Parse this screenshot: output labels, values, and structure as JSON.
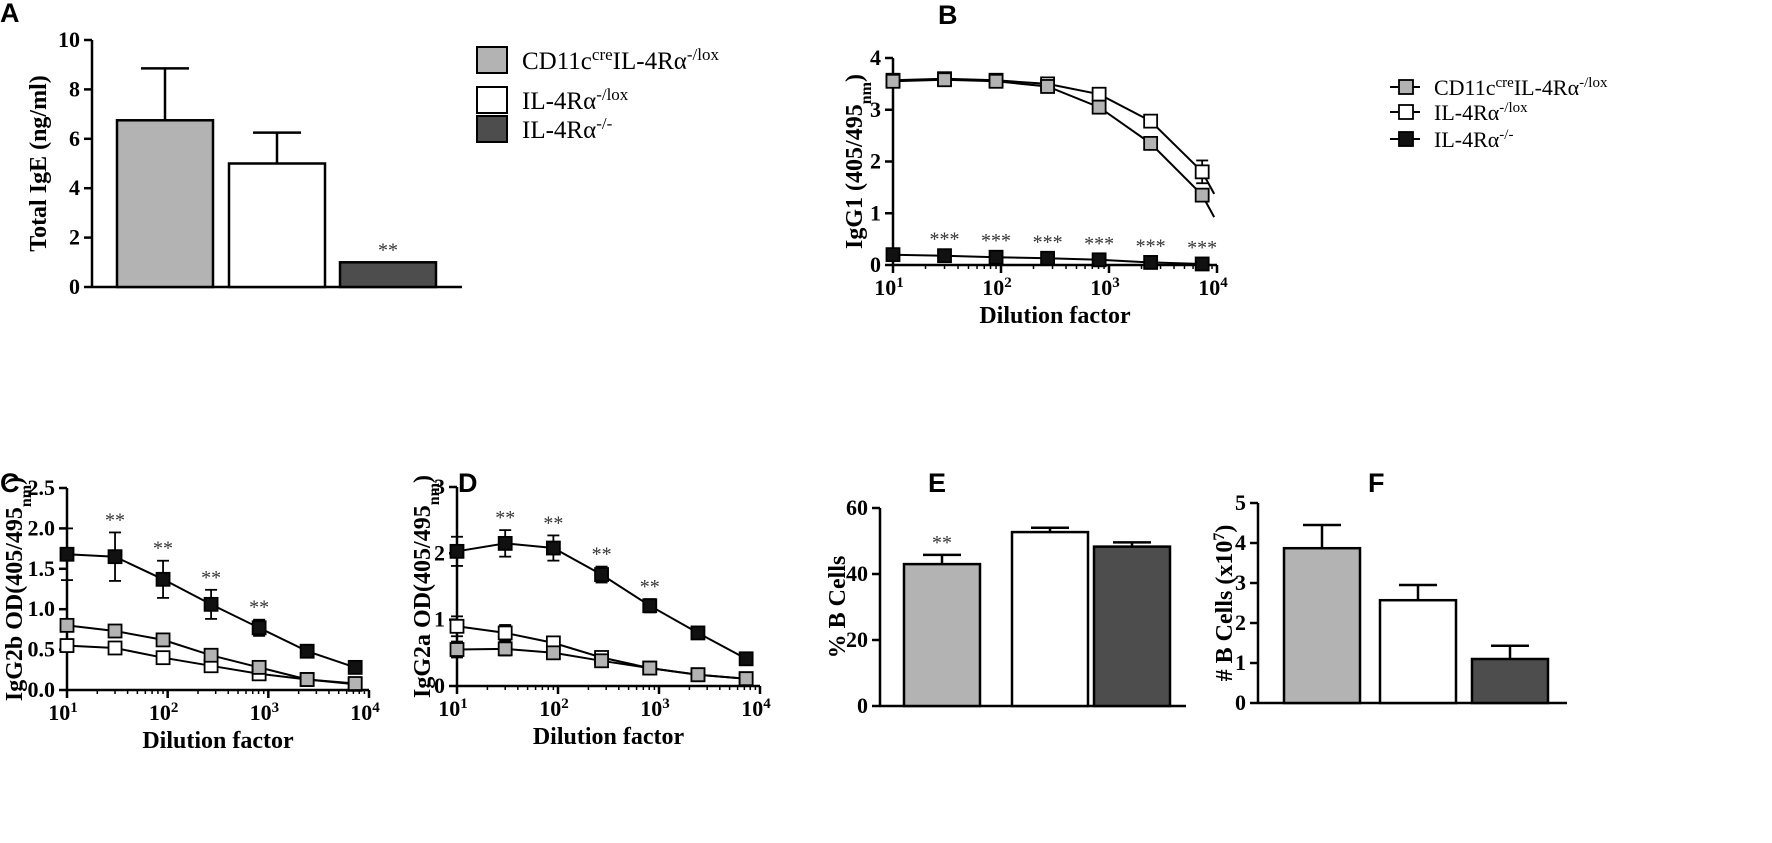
{
  "legend": {
    "entries": [
      {
        "base": "CD11c",
        "sup1": "cre",
        "mid": "IL-4Rα",
        "sup2": "-/lox"
      },
      {
        "base": "IL-4Rα",
        "sup1": "",
        "mid": "",
        "sup2": "-/lox"
      },
      {
        "base": "IL-4Rα",
        "sup1": "",
        "mid": "",
        "sup2": "-/-"
      }
    ]
  },
  "colors": {
    "grey": "#b3b3b3",
    "white": "#ffffff",
    "dark": "#4d4d4d",
    "black": "#111111"
  },
  "chart_data": [
    {
      "panel": "A",
      "type": "bar",
      "ylabel": "Total IgE (ng/ml)",
      "ylim": [
        0,
        10
      ],
      "yticks": [
        "0",
        "2",
        "4",
        "6",
        "8",
        "10"
      ],
      "categories": [
        "CD11c cre IL-4Rα -/lox",
        "IL-4Rα -/lox",
        "IL-4Rα -/-"
      ],
      "values": [
        6.75,
        5.0,
        1.0
      ],
      "errors": [
        2.1,
        1.25,
        0
      ],
      "annotations": [
        "",
        "",
        "**"
      ]
    },
    {
      "panel": "B",
      "type": "line",
      "ylabel": "IgG1 (405/495",
      "ylabel_sub": "nm",
      "ylabel_end": ")",
      "xlabel": "Dilution factor",
      "xscale": "log",
      "xlim": [
        10,
        10000
      ],
      "ylim": [
        0,
        4
      ],
      "yticks": [
        "0",
        "1",
        "2",
        "3",
        "4"
      ],
      "x": [
        10,
        30,
        90,
        270,
        810,
        2430,
        7290
      ],
      "series": [
        {
          "name": "CD11c cre IL-4Rα -/lox",
          "values": [
            3.55,
            3.58,
            3.55,
            3.45,
            3.05,
            2.35,
            1.35
          ],
          "errors": [
            0,
            0,
            0,
            0,
            0,
            0.05,
            0.1
          ]
        },
        {
          "name": "IL-4Rα -/lox",
          "values": [
            3.57,
            3.6,
            3.57,
            3.5,
            3.3,
            2.78,
            1.8
          ],
          "errors": [
            0,
            0,
            0,
            0,
            0,
            0.05,
            0.22
          ]
        },
        {
          "name": "IL-4Rα -/-",
          "values": [
            0.2,
            0.18,
            0.15,
            0.13,
            0.1,
            0.05,
            0.02
          ],
          "errors": [
            0,
            0,
            0,
            0,
            0,
            0,
            0
          ]
        }
      ],
      "stars": [
        "",
        "***",
        "***",
        "***",
        "***",
        "***",
        "***"
      ]
    },
    {
      "panel": "C",
      "type": "line",
      "ylabel": "IgG2b OD(405/495",
      "ylabel_sub": "nm",
      "ylabel_end": ")",
      "xlabel": "Dilution factor",
      "xscale": "log",
      "xlim": [
        10,
        10000
      ],
      "ylim": [
        0,
        2.5
      ],
      "yticks": [
        "0.0",
        "0.5",
        "1.0",
        "1.5",
        "2.0",
        "2.5"
      ],
      "x": [
        10,
        30,
        90,
        270,
        810,
        2430,
        7290
      ],
      "series": [
        {
          "name": "CD11c cre IL-4Rα -/lox",
          "values": [
            0.8,
            0.73,
            0.62,
            0.43,
            0.28,
            0.13,
            0.08
          ],
          "errors": [
            0.05,
            0.04,
            0.03,
            0.03,
            0.02,
            0.02,
            0.01
          ]
        },
        {
          "name": "IL-4Rα -/lox",
          "values": [
            0.55,
            0.52,
            0.4,
            0.3,
            0.2,
            0.13,
            0.07
          ],
          "errors": [
            0.05,
            0.03,
            0.03,
            0.02,
            0.02,
            0.01,
            0.01
          ]
        },
        {
          "name": "IL-4Rα -/-",
          "values": [
            1.68,
            1.65,
            1.37,
            1.06,
            0.77,
            0.48,
            0.28
          ],
          "errors": [
            0.32,
            0.3,
            0.23,
            0.18,
            0.1,
            0.03,
            0.02
          ]
        }
      ],
      "stars": [
        "",
        "**",
        "**",
        "**",
        "**",
        "",
        ""
      ]
    },
    {
      "panel": "D",
      "type": "line",
      "ylabel": "IgG2a OD(405/495",
      "ylabel_sub": "nm",
      "ylabel_end": ")",
      "xlabel": "Dilution factor",
      "xscale": "log",
      "xlim": [
        10,
        10000
      ],
      "ylim": [
        0,
        3
      ],
      "yticks": [
        "0",
        "1",
        "2",
        "3"
      ],
      "x": [
        10,
        30,
        90,
        270,
        810,
        2430,
        7290
      ],
      "series": [
        {
          "name": "CD11c cre IL-4Rα -/lox",
          "values": [
            0.55,
            0.56,
            0.5,
            0.38,
            0.27,
            0.17,
            0.11
          ],
          "errors": [
            0.12,
            0.1,
            0.08,
            0.05,
            0.04,
            0.03,
            0.02
          ]
        },
        {
          "name": "IL-4Rα -/lox",
          "values": [
            0.9,
            0.8,
            0.65,
            0.43,
            0.27,
            0.17,
            0.11
          ],
          "errors": [
            0.15,
            0.12,
            0.08,
            0.06,
            0.04,
            0.02,
            0.02
          ]
        },
        {
          "name": "IL-4Rα -/-",
          "values": [
            2.03,
            2.15,
            2.08,
            1.68,
            1.21,
            0.8,
            0.41
          ],
          "errors": [
            0.22,
            0.2,
            0.19,
            0.12,
            0.1,
            0.09,
            0.03
          ]
        }
      ],
      "stars": [
        "",
        "**",
        "**",
        "**",
        "**",
        "",
        ""
      ]
    },
    {
      "panel": "E",
      "type": "bar",
      "ylabel": "% B Cells",
      "ylim": [
        0,
        60
      ],
      "yticks": [
        "0",
        "20",
        "40",
        "60"
      ],
      "categories": [
        "CD11c cre IL-4Rα -/lox",
        "IL-4Rα -/lox",
        "IL-4Rα -/-"
      ],
      "values": [
        43,
        52.7,
        48.3
      ],
      "errors": [
        2.8,
        1.3,
        1.3
      ],
      "annotations": [
        "**",
        "",
        ""
      ]
    },
    {
      "panel": "F",
      "type": "bar",
      "ylabel": "# B Cells (x10",
      "ylabel_sup": "7",
      "ylabel_end": ")",
      "ylim": [
        0,
        5
      ],
      "yticks": [
        "0",
        "1",
        "2",
        "3",
        "4",
        "5"
      ],
      "categories": [
        "CD11c cre IL-4Rα -/lox",
        "IL-4Rα -/lox",
        "IL-4Rα -/-"
      ],
      "values": [
        3.87,
        2.57,
        1.1
      ],
      "errors": [
        0.58,
        0.38,
        0.33
      ],
      "annotations": [
        "",
        "",
        ""
      ]
    }
  ]
}
